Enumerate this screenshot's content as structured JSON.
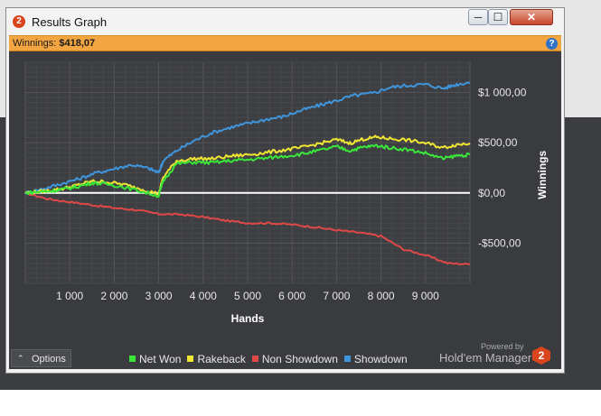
{
  "window": {
    "title": "Results Graph",
    "app_icon": "2",
    "controls": {
      "minimize": "─",
      "maximize": "☐",
      "close": "✕"
    }
  },
  "winnings_bar": {
    "label": "Winnings:",
    "value": "$418,07",
    "help_icon": "?"
  },
  "colors": {
    "net_won": "#39e639",
    "rakeback": "#f0e532",
    "non_showdown": "#e04848",
    "showdown": "#3e95dc",
    "accent": "#f2a541"
  },
  "chart_data": {
    "type": "line",
    "xlabel": "Hands",
    "ylabel": "Winnings",
    "xlim": [
      0,
      10000
    ],
    "ylim": [
      -900,
      1300
    ],
    "x_ticks": [
      1000,
      2000,
      3000,
      4000,
      5000,
      6000,
      7000,
      8000,
      9000
    ],
    "x_tick_labels": [
      "1 000",
      "2 000",
      "3 000",
      "4 000",
      "5 000",
      "6 000",
      "7 000",
      "8 000",
      "9 000"
    ],
    "y_ticks": [
      -500,
      0,
      500,
      1000
    ],
    "y_tick_labels": [
      "-$500,00",
      "$0,00",
      "$500,00",
      "$1 000,00"
    ],
    "grid": true,
    "legend_position": "bottom",
    "series": [
      {
        "name": "Net Won",
        "x": [
          0,
          300,
          600,
          900,
          1200,
          1500,
          1800,
          2200,
          2600,
          3000,
          3100,
          3400,
          3800,
          4200,
          4600,
          5000,
          5400,
          5800,
          6200,
          6600,
          7000,
          7300,
          7600,
          7900,
          8200,
          8600,
          9000,
          9400,
          9700,
          10000
        ],
        "y": [
          0,
          10,
          20,
          40,
          65,
          100,
          90,
          60,
          15,
          -30,
          120,
          290,
          305,
          300,
          320,
          330,
          345,
          365,
          385,
          420,
          460,
          420,
          455,
          470,
          450,
          430,
          395,
          340,
          370,
          380
        ]
      },
      {
        "name": "Rakeback",
        "x": [
          0,
          300,
          600,
          900,
          1200,
          1500,
          1800,
          2200,
          2600,
          3000,
          3100,
          3400,
          3800,
          4200,
          4600,
          5000,
          5400,
          5800,
          6200,
          6600,
          7000,
          7300,
          7600,
          7900,
          8200,
          8600,
          9000,
          9400,
          9700,
          10000
        ],
        "y": [
          0,
          12,
          25,
          48,
          80,
          115,
          110,
          85,
          40,
          -10,
          155,
          320,
          340,
          340,
          365,
          380,
          400,
          425,
          450,
          490,
          530,
          495,
          535,
          555,
          540,
          525,
          495,
          450,
          480,
          495
        ]
      },
      {
        "name": "Non Showdown",
        "x": [
          0,
          500,
          1000,
          1500,
          2000,
          2500,
          3000,
          3500,
          4000,
          4500,
          5000,
          5500,
          6000,
          6500,
          7000,
          7500,
          8000,
          8500,
          9000,
          9500,
          10000
        ],
        "y": [
          0,
          -60,
          -90,
          -120,
          -150,
          -170,
          -210,
          -215,
          -240,
          -275,
          -300,
          -300,
          -315,
          -340,
          -370,
          -395,
          -430,
          -560,
          -620,
          -700,
          -710
        ]
      },
      {
        "name": "Showdown",
        "x": [
          0,
          400,
          800,
          1200,
          1600,
          2000,
          2400,
          2800,
          3000,
          3100,
          3400,
          3800,
          4200,
          4600,
          5000,
          5400,
          5800,
          6200,
          6600,
          7000,
          7400,
          7800,
          8200,
          8600,
          9000,
          9400,
          9700,
          10000
        ],
        "y": [
          0,
          40,
          90,
          140,
          200,
          240,
          280,
          240,
          200,
          320,
          420,
          520,
          600,
          650,
          690,
          730,
          760,
          820,
          870,
          920,
          970,
          990,
          1050,
          1070,
          1080,
          1040,
          1080,
          1100
        ]
      }
    ]
  },
  "options_button": {
    "chevron": "⌃",
    "label": "Options"
  },
  "footer": {
    "powered_by": "Powered by",
    "brand": "Hold'em Manager",
    "brand_logo": "2"
  }
}
